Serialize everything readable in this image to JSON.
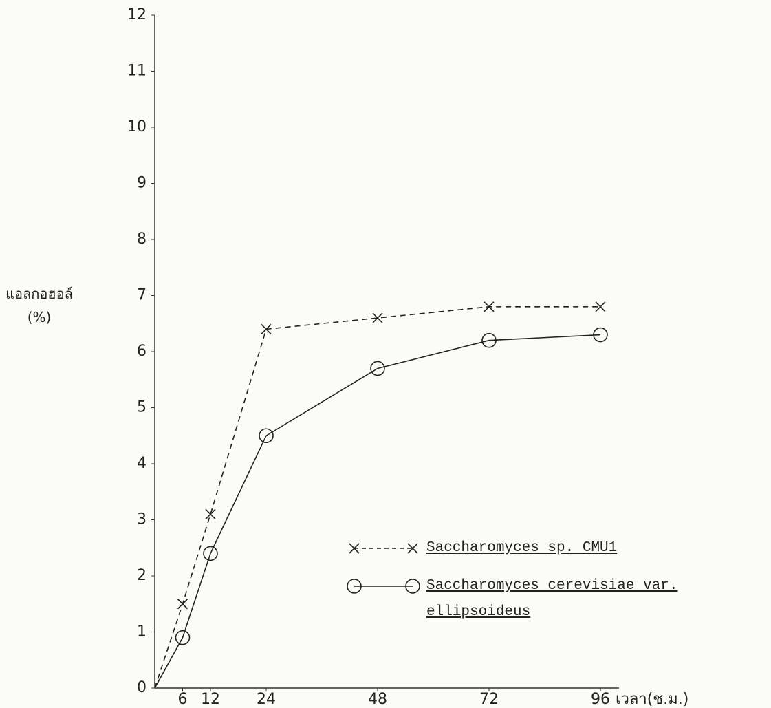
{
  "chart_data": {
    "type": "line",
    "ylabel": "แอลกอฮอล์ (%)",
    "xlabel": "เวลา(ช.ม.)",
    "xlim": [
      0,
      100
    ],
    "ylim": [
      0,
      12
    ],
    "xticks": [
      6,
      12,
      24,
      48,
      72,
      96
    ],
    "yticks": [
      0,
      1,
      2,
      3,
      4,
      5,
      6,
      7,
      8,
      9,
      10,
      11,
      12
    ],
    "series": [
      {
        "name": "Saccharomyces sp. CMU1",
        "color": "#222222",
        "marker": "x",
        "linestyle": "dashed",
        "x": [
          0,
          6,
          12,
          24,
          48,
          72,
          96
        ],
        "values": [
          0,
          1.5,
          3.1,
          6.4,
          6.6,
          6.8,
          6.8
        ]
      },
      {
        "name": "Saccharomyces cerevisiae var. ellipsoideus",
        "color": "#222222",
        "marker": "o",
        "linestyle": "solid",
        "x": [
          0,
          6,
          12,
          24,
          48,
          72,
          96
        ],
        "values": [
          0,
          0.9,
          2.4,
          4.5,
          5.7,
          6.2,
          6.3
        ]
      }
    ]
  }
}
